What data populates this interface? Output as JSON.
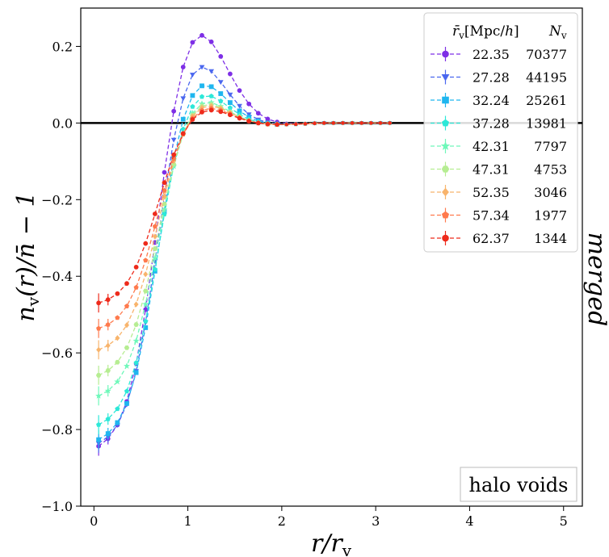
{
  "chart_data": {
    "type": "line",
    "xlabel": "r/r_v",
    "ylabel": "n_v(r)/n̄ − 1",
    "xlim": [
      -0.14,
      5.2
    ],
    "ylim": [
      -1.0,
      0.3
    ],
    "xticks": [
      0,
      1,
      2,
      3,
      4,
      5
    ],
    "yticks": [
      -1.0,
      -0.8,
      -0.6,
      -0.4,
      -0.2,
      0.0,
      0.2
    ],
    "xtick_labels": [
      "0",
      "1",
      "2",
      "3",
      "4",
      "5"
    ],
    "ytick_labels": [
      "−1.0",
      "−0.8",
      "−0.6",
      "−0.4",
      "−0.2",
      "0.0",
      "0.2"
    ],
    "hline_y": 0.0,
    "legend_header_r": "r̄_v[Mpc/h]",
    "legend_header_n": "N_v",
    "side_label": "merged",
    "box_label": "halo voids",
    "series": [
      {
        "name": "22.35",
        "count": "70377",
        "color": "#7e2fe6",
        "marker": "circle",
        "p_inner": -0.865,
        "peak": 0.28,
        "peak_x": 1.05,
        "width": 0.33
      },
      {
        "name": "27.28",
        "count": "44195",
        "color": "#4a67ef",
        "marker": "triangle-down",
        "p_inner": -0.855,
        "peak": 0.195,
        "peak_x": 1.05,
        "width": 0.3
      },
      {
        "name": "32.24",
        "count": "25261",
        "color": "#1fb6ef",
        "marker": "square",
        "p_inner": -0.845,
        "peak": 0.14,
        "peak_x": 1.07,
        "width": 0.29
      },
      {
        "name": "37.28",
        "count": "13981",
        "color": "#2ce8d8",
        "marker": "pentagon",
        "p_inner": -0.805,
        "peak": 0.108,
        "peak_x": 1.08,
        "width": 0.28
      },
      {
        "name": "42.31",
        "count": "7797",
        "color": "#6ff8ba",
        "marker": "star",
        "p_inner": -0.728,
        "peak": 0.085,
        "peak_x": 1.09,
        "width": 0.27
      },
      {
        "name": "47.31",
        "count": "4753",
        "color": "#b6ed92",
        "marker": "hexagon",
        "p_inner": -0.673,
        "peak": 0.076,
        "peak_x": 1.1,
        "width": 0.27
      },
      {
        "name": "52.35",
        "count": "3046",
        "color": "#f8b46c",
        "marker": "diamond",
        "p_inner": -0.605,
        "peak": 0.068,
        "peak_x": 1.11,
        "width": 0.27
      },
      {
        "name": "57.34",
        "count": "1977",
        "color": "#ff7a4d",
        "marker": "pentagon",
        "p_inner": -0.548,
        "peak": 0.058,
        "peak_x": 1.12,
        "width": 0.27
      },
      {
        "name": "62.37",
        "count": "1344",
        "color": "#ee2a1b",
        "marker": "circle",
        "p_inner": -0.48,
        "peak": 0.05,
        "peak_x": 1.13,
        "width": 0.27
      }
    ]
  }
}
